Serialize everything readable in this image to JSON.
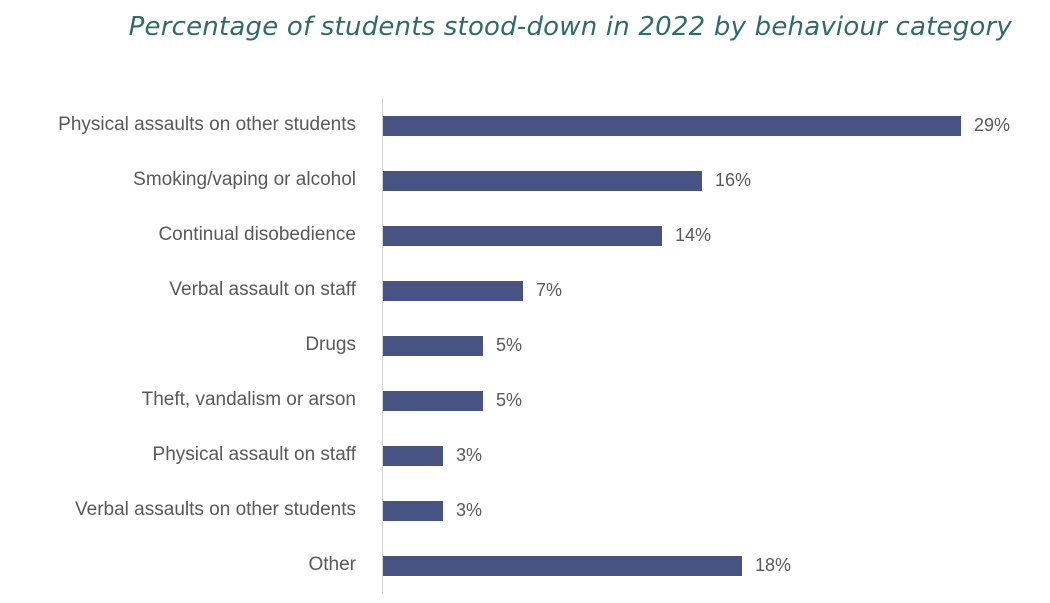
{
  "title": "Percentage of students stood-down in 2022 by behaviour category",
  "colors": {
    "bar": "#475383",
    "title": "#2e6b6b",
    "text": "#595959",
    "axis": "#d3d3d3"
  },
  "rows": [
    {
      "label": "Physical assaults on other students",
      "value": 29,
      "display": "29%"
    },
    {
      "label": "Smoking/vaping or alcohol",
      "value": 16,
      "display": "16%"
    },
    {
      "label": "Continual disobedience",
      "value": 14,
      "display": "14%"
    },
    {
      "label": "Verbal assault on staff",
      "value": 7,
      "display": "7%"
    },
    {
      "label": "Drugs",
      "value": 5,
      "display": "5%"
    },
    {
      "label": "Theft, vandalism or arson",
      "value": 5,
      "display": "5%"
    },
    {
      "label": "Physical assault on staff",
      "value": 3,
      "display": "3%"
    },
    {
      "label": "Verbal assaults on other students",
      "value": 3,
      "display": "3%"
    },
    {
      "label": "Other",
      "value": 18,
      "display": "18%"
    }
  ],
  "chart_data": {
    "type": "bar",
    "orientation": "horizontal",
    "title": "Percentage of students stood-down in 2022 by behaviour category",
    "categories": [
      "Physical assaults on other students",
      "Smoking/vaping or alcohol",
      "Continual disobedience",
      "Verbal assault on staff",
      "Drugs",
      "Theft, vandalism or arson",
      "Physical assault on staff",
      "Verbal assaults on other students",
      "Other"
    ],
    "values": [
      29,
      16,
      14,
      7,
      5,
      5,
      3,
      3,
      18
    ],
    "data_labels": [
      "29%",
      "16%",
      "14%",
      "7%",
      "5%",
      "5%",
      "3%",
      "3%",
      "18%"
    ],
    "xlabel": "",
    "ylabel": "",
    "unit": "%",
    "grid": false,
    "legend": null
  }
}
